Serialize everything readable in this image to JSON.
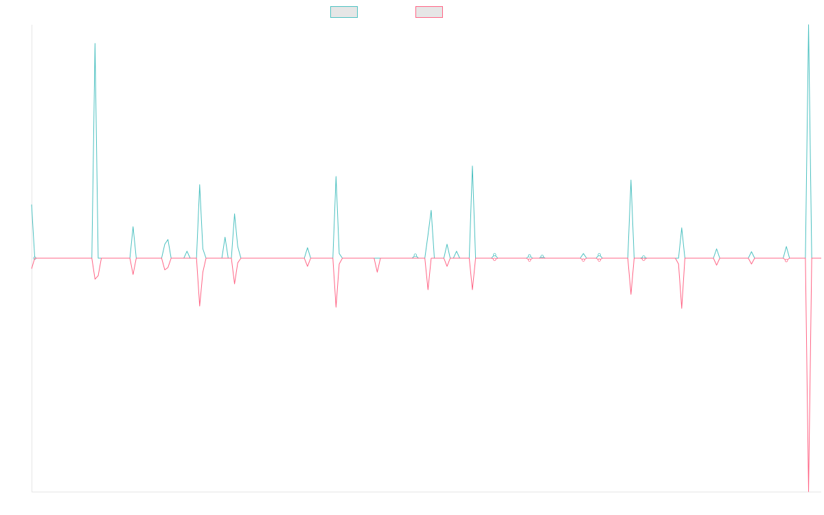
{
  "chart_data": {
    "type": "line",
    "title": "",
    "xlabel": "",
    "ylabel": "",
    "grid": false,
    "legend_position": "top-center",
    "baseline_value": 0,
    "ylim": [
      -1.0,
      1.0
    ],
    "x_count": 250,
    "series": [
      {
        "color": "#4bc0c0",
        "fill_color": "#e6e6e6",
        "points": [
          [
            0,
            0.23
          ],
          [
            1,
            0.0
          ],
          [
            20,
            0.92
          ],
          [
            32,
            0.135
          ],
          [
            42,
            0.06
          ],
          [
            43,
            0.08
          ],
          [
            49,
            0.03
          ],
          [
            53,
            0.315
          ],
          [
            54,
            0.04
          ],
          [
            61,
            0.09
          ],
          [
            64,
            0.19
          ],
          [
            65,
            0.05
          ],
          [
            87,
            0.045
          ],
          [
            96,
            0.35
          ],
          [
            97,
            0.02
          ],
          [
            121,
            0.013
          ],
          [
            125,
            0.1
          ],
          [
            126,
            0.205
          ],
          [
            131,
            0.06
          ],
          [
            134,
            0.03
          ],
          [
            139,
            0.395
          ],
          [
            146,
            0.015
          ],
          [
            157,
            0.01
          ],
          [
            161,
            0.008
          ],
          [
            174,
            0.02
          ],
          [
            179,
            0.015
          ],
          [
            189,
            0.335
          ],
          [
            193,
            0.005
          ],
          [
            205,
            0.13
          ],
          [
            216,
            0.04
          ],
          [
            227,
            0.028
          ],
          [
            238,
            0.05
          ],
          [
            245,
            1.0
          ]
        ]
      },
      {
        "color": "#ff6384",
        "fill_color": "#e6e6e6",
        "points": [
          [
            0,
            -0.045
          ],
          [
            20,
            -0.09
          ],
          [
            21,
            -0.075
          ],
          [
            32,
            -0.07
          ],
          [
            42,
            -0.05
          ],
          [
            43,
            -0.04
          ],
          [
            53,
            -0.205
          ],
          [
            54,
            -0.06
          ],
          [
            64,
            -0.11
          ],
          [
            65,
            -0.02
          ],
          [
            87,
            -0.035
          ],
          [
            96,
            -0.21
          ],
          [
            97,
            -0.025
          ],
          [
            109,
            -0.06
          ],
          [
            125,
            -0.135
          ],
          [
            131,
            -0.035
          ],
          [
            139,
            -0.135
          ],
          [
            146,
            -0.005
          ],
          [
            157,
            -0.008
          ],
          [
            174,
            -0.008
          ],
          [
            179,
            -0.008
          ],
          [
            189,
            -0.155
          ],
          [
            193,
            -0.005
          ],
          [
            204,
            -0.025
          ],
          [
            205,
            -0.215
          ],
          [
            216,
            -0.03
          ],
          [
            227,
            -0.025
          ],
          [
            238,
            -0.01
          ],
          [
            245,
            -1.0
          ]
        ]
      }
    ]
  }
}
